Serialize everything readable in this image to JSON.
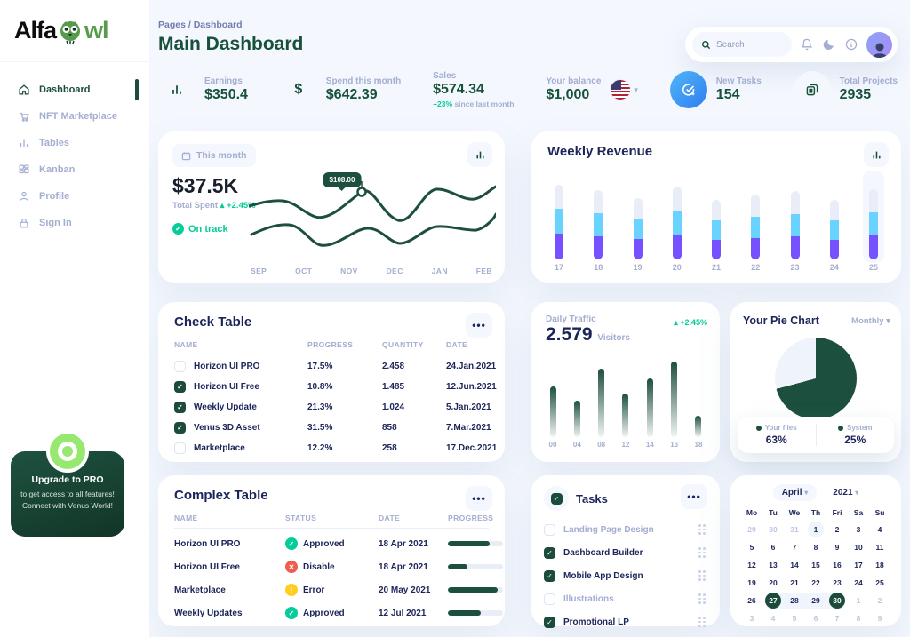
{
  "brand": {
    "name_black": "Alfa",
    "name_green": "wl"
  },
  "breadcrumb": "Pages / Dashboard",
  "page_title": "Main Dashboard",
  "topbar": {
    "search_placeholder": "Search"
  },
  "sidebar": {
    "items": [
      {
        "label": "Dashboard",
        "active": true
      },
      {
        "label": "NFT Marketplace"
      },
      {
        "label": "Tables"
      },
      {
        "label": "Kanban"
      },
      {
        "label": "Profile"
      },
      {
        "label": "Sign In"
      }
    ]
  },
  "upgrade": {
    "title": "Upgrade to PRO",
    "line1": "to get access to all features!",
    "line2": "Connect with Venus World!"
  },
  "stats": {
    "earnings": {
      "label": "Earnings",
      "value": "$350.4"
    },
    "spend": {
      "label": "Spend this month",
      "value": "$642.39"
    },
    "sales": {
      "label": "Sales",
      "value": "$574.34",
      "delta": "+23%",
      "delta_note": "since last month"
    },
    "balance": {
      "label": "Your balance",
      "value": "$1,000"
    },
    "new_tasks": {
      "label": "New Tasks",
      "value": "154"
    },
    "projects": {
      "label": "Total Projects",
      "value": "2935"
    }
  },
  "spend_card": {
    "filter": "This month",
    "total": "$37.5K",
    "total_label": "Total Spent",
    "delta": "+2.45%",
    "status": "On track",
    "tooltip": "$108.00"
  },
  "weekly_revenue": {
    "title": "Weekly Revenue"
  },
  "check_table": {
    "title": "Check Table",
    "columns": [
      "NAME",
      "PROGRESS",
      "QUANTITY",
      "DATE"
    ],
    "rows": [
      {
        "name": "Horizon UI PRO",
        "checked": false,
        "progress": "17.5%",
        "quantity": "2.458",
        "date": "24.Jan.2021"
      },
      {
        "name": "Horizon UI Free",
        "checked": true,
        "progress": "10.8%",
        "quantity": "1.485",
        "date": "12.Jun.2021"
      },
      {
        "name": "Weekly Update",
        "checked": true,
        "progress": "21.3%",
        "quantity": "1.024",
        "date": "5.Jan.2021"
      },
      {
        "name": "Venus 3D Asset",
        "checked": true,
        "progress": "31.5%",
        "quantity": "858",
        "date": "7.Mar.2021"
      },
      {
        "name": "Marketplace",
        "checked": false,
        "progress": "12.2%",
        "quantity": "258",
        "date": "17.Dec.2021"
      }
    ]
  },
  "daily_traffic": {
    "label": "Daily Traffic",
    "value": "2.579",
    "unit": "Visitors",
    "delta": "+2.45%"
  },
  "pie": {
    "title": "Your Pie Chart",
    "range": "Monthly",
    "legend": [
      {
        "label": "Your files",
        "value": "63%"
      },
      {
        "label": "System",
        "value": "25%"
      }
    ]
  },
  "complex_table": {
    "title": "Complex Table",
    "columns": [
      "NAME",
      "STATUS",
      "DATE",
      "PROGRESS"
    ],
    "rows": [
      {
        "name": "Horizon UI PRO",
        "status": "Approved",
        "status_color": "#05CD99",
        "glyph": "✓",
        "date": "18 Apr 2021",
        "progress": 75
      },
      {
        "name": "Horizon UI Free",
        "status": "Disable",
        "status_color": "#EE5D50",
        "glyph": "✕",
        "date": "18 Apr 2021",
        "progress": 35
      },
      {
        "name": "Marketplace",
        "status": "Error",
        "status_color": "#FFCE20",
        "glyph": "!",
        "date": "20 May 2021",
        "progress": 90
      },
      {
        "name": "Weekly Updates",
        "status": "Approved",
        "status_color": "#05CD99",
        "glyph": "✓",
        "date": "12 Jul 2021",
        "progress": 60
      }
    ]
  },
  "tasks": {
    "title": "Tasks",
    "items": [
      {
        "label": "Landing Page Design",
        "checked": false
      },
      {
        "label": "Dashboard Builder",
        "checked": true
      },
      {
        "label": "Mobile App Design",
        "checked": true
      },
      {
        "label": "Illustrations",
        "checked": false
      },
      {
        "label": "Promotional LP",
        "checked": true
      }
    ]
  },
  "calendar": {
    "month": "April",
    "year": "2021",
    "weekdays": [
      "Mo",
      "Tu",
      "We",
      "Th",
      "Fri",
      "Sa",
      "Su"
    ],
    "weeks": [
      [
        {
          "d": "29",
          "s": "muted"
        },
        {
          "d": "30",
          "s": "muted"
        },
        {
          "d": "31",
          "s": "muted"
        },
        {
          "d": "1",
          "s": "today"
        },
        {
          "d": "2"
        },
        {
          "d": "3"
        },
        {
          "d": "4"
        }
      ],
      [
        {
          "d": "5"
        },
        {
          "d": "6"
        },
        {
          "d": "7"
        },
        {
          "d": "8"
        },
        {
          "d": "9"
        },
        {
          "d": "10"
        },
        {
          "d": "11"
        }
      ],
      [
        {
          "d": "12"
        },
        {
          "d": "13"
        },
        {
          "d": "14"
        },
        {
          "d": "15"
        },
        {
          "d": "16"
        },
        {
          "d": "17"
        },
        {
          "d": "18"
        }
      ],
      [
        {
          "d": "19"
        },
        {
          "d": "20"
        },
        {
          "d": "21"
        },
        {
          "d": "22"
        },
        {
          "d": "23"
        },
        {
          "d": "24"
        },
        {
          "d": "25"
        }
      ],
      [
        {
          "d": "26"
        },
        {
          "d": "27",
          "s": "selected band-start"
        },
        {
          "d": "28",
          "s": "band"
        },
        {
          "d": "29",
          "s": "band"
        },
        {
          "d": "30",
          "s": "selected band-end"
        },
        {
          "d": "1",
          "s": "muted"
        },
        {
          "d": "2",
          "s": "muted"
        }
      ],
      [
        {
          "d": "3",
          "s": "muted"
        },
        {
          "d": "4",
          "s": "muted"
        },
        {
          "d": "5",
          "s": "muted"
        },
        {
          "d": "6",
          "s": "muted"
        },
        {
          "d": "7",
          "s": "muted"
        },
        {
          "d": "8",
          "s": "muted"
        },
        {
          "d": "9",
          "s": "muted"
        }
      ]
    ]
  },
  "chart_data": [
    {
      "type": "line",
      "title": "Total Spent monthly",
      "x": [
        "SEP",
        "OCT",
        "NOV",
        "DEC",
        "JAN",
        "FEB"
      ],
      "series": [
        {
          "name": "Spent",
          "values": [
            78,
            64,
            108,
            60,
            100,
            96
          ]
        },
        {
          "name": "Revenue",
          "values": [
            45,
            30,
            52,
            32,
            55,
            70
          ]
        }
      ],
      "annotation": "$108.00",
      "total": "$37.5K",
      "delta": "+2.45%",
      "status": "On track",
      "ylim": [
        0,
        120
      ],
      "grid": false
    },
    {
      "type": "bar",
      "stacked": true,
      "title": "Weekly Revenue",
      "categories": [
        "17",
        "18",
        "19",
        "20",
        "21",
        "22",
        "23",
        "24",
        "25"
      ],
      "series": [
        {
          "name": "segment-1",
          "color": "#7551FF",
          "values": [
            29,
            26,
            23,
            28,
            22,
            24,
            26,
            22,
            27
          ]
        },
        {
          "name": "segment-2",
          "color": "#6AD2FF",
          "values": [
            28,
            26,
            23,
            27,
            22,
            24,
            25,
            22,
            26
          ]
        },
        {
          "name": "segment-3",
          "color": "#E9EDF7",
          "values": [
            27,
            26,
            23,
            27,
            23,
            25,
            26,
            23,
            26
          ]
        }
      ],
      "ylim": [
        0,
        92
      ],
      "grid": false
    },
    {
      "type": "bar",
      "title": "Daily Traffic",
      "categories": [
        "00",
        "04",
        "08",
        "12",
        "14",
        "16",
        "18"
      ],
      "values": [
        57,
        41,
        77,
        49,
        66,
        85,
        24
      ],
      "ylabel": "Visitors",
      "ylim": [
        0,
        88
      ],
      "grid": false
    },
    {
      "type": "pie",
      "title": "Your Pie Chart",
      "labels": [
        "Your files",
        "System"
      ],
      "values": [
        63,
        25
      ]
    }
  ]
}
